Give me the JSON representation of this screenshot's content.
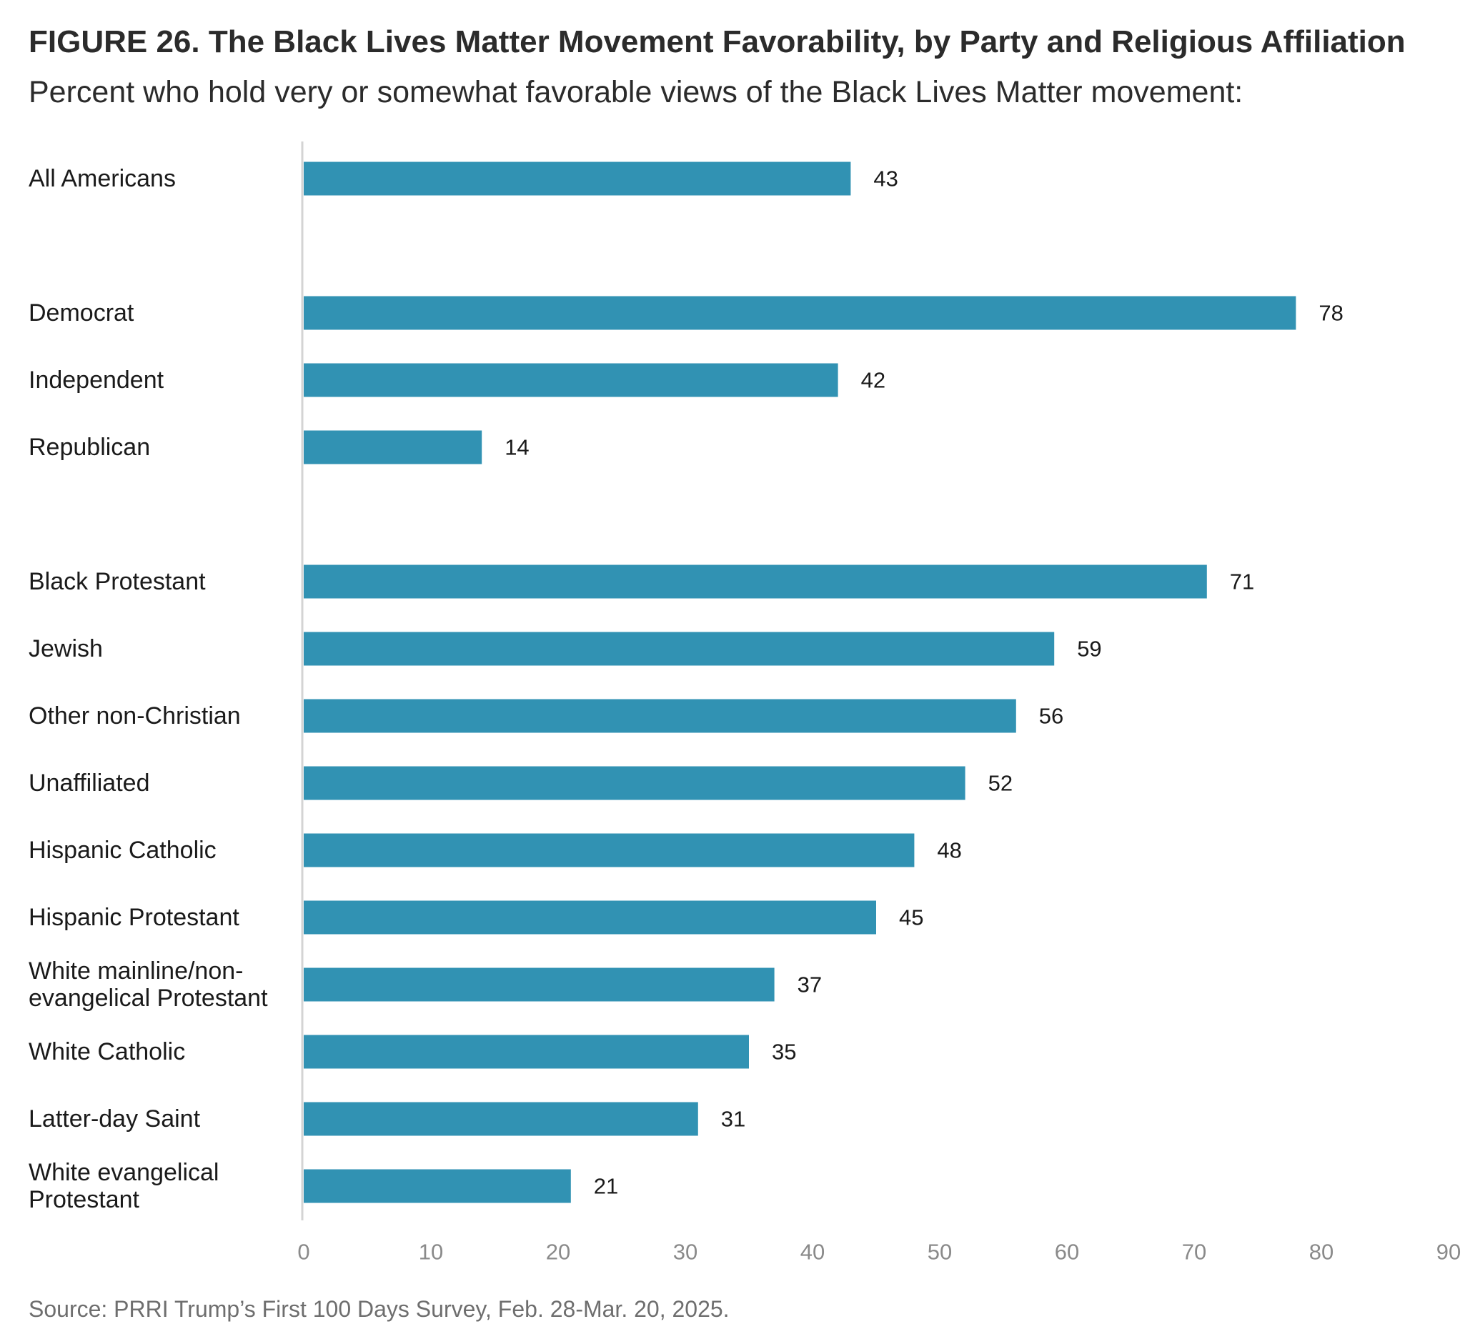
{
  "chart_data": {
    "type": "bar",
    "orientation": "horizontal",
    "title": "FIGURE 26.  The Black Lives Matter Movement Favorability, by Party and Religious Affiliation",
    "subtitle": "Percent who hold very or somewhat favorable views of the Black Lives Matter movement:",
    "xlim": [
      0,
      90
    ],
    "x_ticks": [
      "0",
      "10",
      "20",
      "30",
      "40",
      "50",
      "60",
      "70",
      "80",
      "90"
    ],
    "grid": false,
    "bar_color": "#3192b3",
    "groups": [
      {
        "categories": [
          {
            "label": "All Americans",
            "value": 43
          }
        ]
      },
      {
        "categories": [
          {
            "label": "Democrat",
            "value": 78
          },
          {
            "label": "Independent",
            "value": 42
          },
          {
            "label": "Republican",
            "value": 14
          }
        ]
      },
      {
        "categories": [
          {
            "label": "Black Protestant",
            "value": 71
          },
          {
            "label": "Jewish",
            "value": 59
          },
          {
            "label": "Other non-Christian",
            "value": 56
          },
          {
            "label": "Unaffiliated",
            "value": 52
          },
          {
            "label": "Hispanic Catholic",
            "value": 48
          },
          {
            "label": "Hispanic Protestant",
            "value": 45
          },
          {
            "label": "White mainline/non-evangelical Protestant",
            "lines": [
              "White mainline/non-",
              "evangelical Protestant"
            ],
            "value": 37
          },
          {
            "label": "White Catholic",
            "value": 35
          },
          {
            "label": "Latter-day Saint",
            "value": 31
          },
          {
            "label": "White evangelical Protestant",
            "lines": [
              "White evangelical",
              "Protestant"
            ],
            "value": 21
          }
        ]
      }
    ],
    "source": "Source: PRRI Trump’s First 100 Days Survey, Feb. 28-Mar. 20, 2025."
  }
}
